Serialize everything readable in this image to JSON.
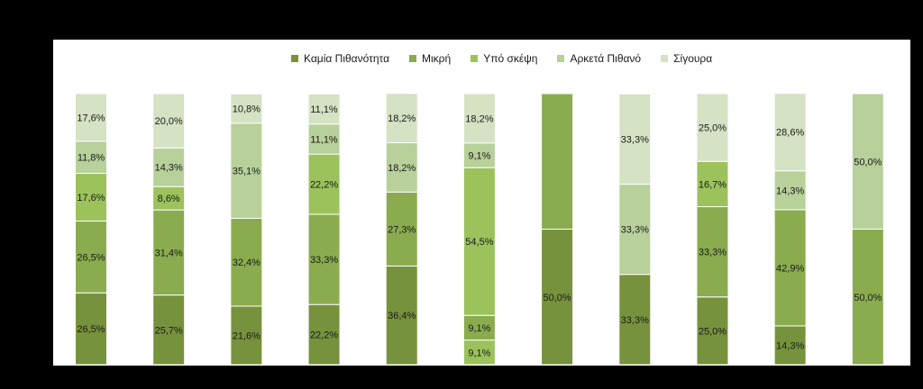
{
  "chart_data": {
    "type": "bar",
    "stacked": true,
    "percent_stacked": true,
    "title": "",
    "xlabel": "",
    "ylabel": "",
    "ylim": [
      0,
      100
    ],
    "grid": false,
    "legend_position": "top",
    "categories": [
      "",
      "",
      "",
      "",
      "",
      "",
      "",
      "",
      "",
      "",
      ""
    ],
    "series": [
      {
        "name": "Καμία Πιθανότητα",
        "color": "#76923c",
        "values": [
          26.5,
          25.7,
          21.6,
          22.2,
          36.4,
          0,
          50.0,
          33.3,
          25.0,
          14.3,
          0
        ],
        "labels": [
          "26,5%",
          "25,7%",
          "21,6%",
          "22,2%",
          "36,4%",
          "",
          "50,0%",
          "33,3%",
          "25,0%",
          "14,3%",
          ""
        ]
      },
      {
        "name": "Μικρή",
        "color": "#8aac4f",
        "values": [
          26.5,
          31.4,
          32.4,
          33.3,
          27.3,
          9.1,
          50.0,
          0,
          33.3,
          42.9,
          50.0
        ],
        "labels": [
          "26,5%",
          "31,4%",
          "32,4%",
          "33,3%",
          "27,3%",
          "9,1%",
          "",
          "",
          "33,3%",
          "42,9%",
          "50,0%"
        ]
      },
      {
        "name": "Υπό σκέψη",
        "color": "#9cc25c",
        "values": [
          17.6,
          8.6,
          0,
          22.2,
          0,
          54.5,
          0,
          0,
          16.7,
          0,
          0
        ],
        "labels": [
          "17,6%",
          "8,6%",
          "",
          "22,2%",
          "",
          "54,5%",
          "",
          "",
          "16,7%",
          "",
          ""
        ]
      },
      {
        "name": "Αρκετά Πιθανό",
        "color": "#b8d09a",
        "values": [
          11.8,
          14.3,
          35.1,
          11.1,
          18.2,
          9.1,
          0,
          33.3,
          0,
          14.3,
          50.0
        ],
        "labels": [
          "11,8%",
          "14,3%",
          "35,1%",
          "11,1%",
          "18,2%",
          "9,1%",
          "",
          "33,3%",
          "",
          "14,3%",
          "50,0%"
        ]
      },
      {
        "name": "Σίγουρα",
        "color": "#d5e2c3",
        "values": [
          17.6,
          20.0,
          10.8,
          11.1,
          18.2,
          18.2,
          0,
          33.3,
          25.0,
          28.6,
          0
        ],
        "labels": [
          "17,6%",
          "20,0%",
          "10,8%",
          "11,1%",
          "18,2%",
          "18,2%",
          "",
          "33,3%",
          "25,0%",
          "28,6%",
          ""
        ]
      }
    ],
    "extra_segments": [
      {
        "category_index": 0,
        "value": 0,
        "label": ""
      },
      {
        "category_index": 2,
        "value": 0,
        "label": ""
      },
      {
        "category_index": 5,
        "value": 9.1,
        "label": "9,1%"
      }
    ]
  }
}
